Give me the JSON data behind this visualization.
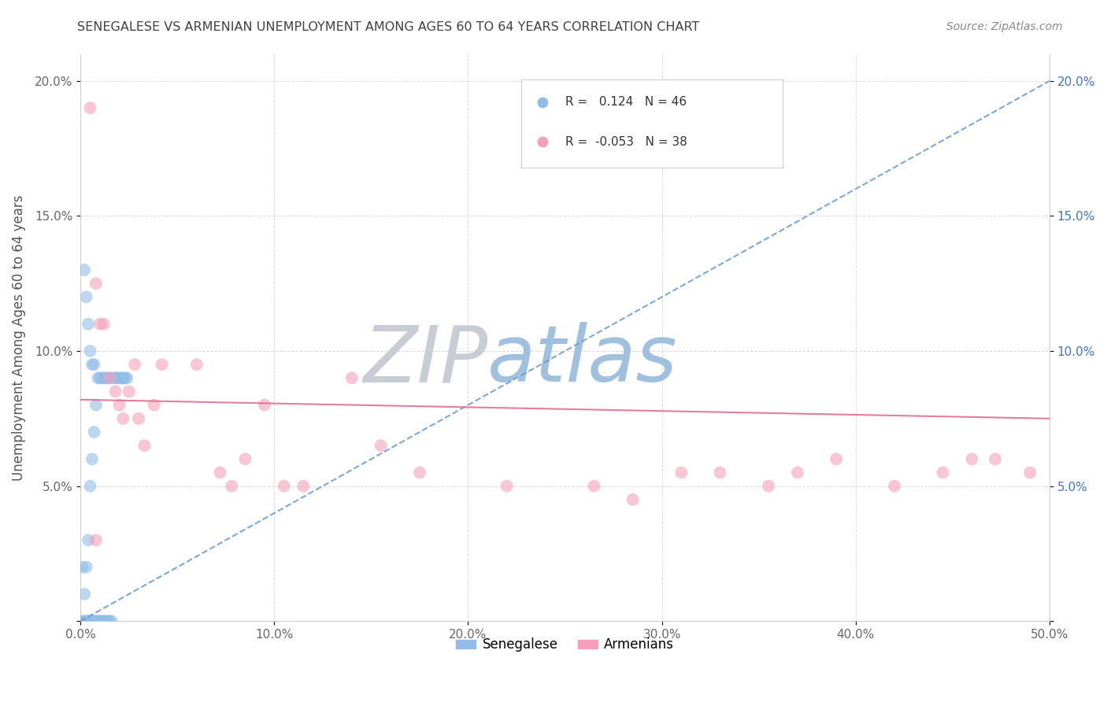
{
  "title": "SENEGALESE VS ARMENIAN UNEMPLOYMENT AMONG AGES 60 TO 64 YEARS CORRELATION CHART",
  "source": "Source: ZipAtlas.com",
  "ylabel": "Unemployment Among Ages 60 to 64 years",
  "xlim": [
    0,
    0.5
  ],
  "ylim": [
    0,
    0.21
  ],
  "xticks": [
    0.0,
    0.1,
    0.2,
    0.3,
    0.4,
    0.5
  ],
  "xtick_labels": [
    "0.0%",
    "10.0%",
    "20.0%",
    "30.0%",
    "40.0%",
    "50.0%"
  ],
  "yticks": [
    0.0,
    0.05,
    0.1,
    0.15,
    0.2
  ],
  "ytick_labels": [
    "",
    "5.0%",
    "10.0%",
    "15.0%",
    "20.0%"
  ],
  "senegalese_R": 0.124,
  "senegalese_N": 46,
  "armenian_R": -0.053,
  "armenian_N": 38,
  "senegalese_color": "#92bde8",
  "armenian_color": "#f4a0b8",
  "senegalese_line_color": "#6699cc",
  "armenian_line_color": "#e07090",
  "watermark_zip_color": "#c0c8d8",
  "watermark_atlas_color": "#a8c8e8",
  "background_color": "#ffffff",
  "grid_color": "#cccccc",
  "title_color": "#404040",
  "senegalese_x": [
    0.001,
    0.002,
    0.002,
    0.003,
    0.003,
    0.004,
    0.004,
    0.005,
    0.005,
    0.006,
    0.006,
    0.007,
    0.007,
    0.008,
    0.008,
    0.009,
    0.009,
    0.01,
    0.01,
    0.011,
    0.011,
    0.012,
    0.012,
    0.013,
    0.013,
    0.014,
    0.014,
    0.015,
    0.015,
    0.016,
    0.017,
    0.018,
    0.019,
    0.02,
    0.021,
    0.022,
    0.023,
    0.024,
    0.002,
    0.003,
    0.004,
    0.005,
    0.006,
    0.007,
    0.022,
    0.001
  ],
  "senegalese_y": [
    0.0,
    0.0,
    0.01,
    0.0,
    0.02,
    0.0,
    0.03,
    0.0,
    0.05,
    0.0,
    0.06,
    0.0,
    0.07,
    0.0,
    0.08,
    0.0,
    0.09,
    0.0,
    0.09,
    0.0,
    0.09,
    0.0,
    0.09,
    0.0,
    0.09,
    0.0,
    0.09,
    0.0,
    0.09,
    0.0,
    0.09,
    0.09,
    0.09,
    0.09,
    0.09,
    0.09,
    0.09,
    0.09,
    0.13,
    0.12,
    0.11,
    0.1,
    0.095,
    0.095,
    0.09,
    0.02
  ],
  "armenian_x": [
    0.005,
    0.008,
    0.01,
    0.012,
    0.015,
    0.018,
    0.02,
    0.022,
    0.025,
    0.028,
    0.03,
    0.033,
    0.038,
    0.042,
    0.06,
    0.072,
    0.078,
    0.085,
    0.095,
    0.105,
    0.115,
    0.14,
    0.155,
    0.175,
    0.22,
    0.265,
    0.285,
    0.31,
    0.33,
    0.355,
    0.37,
    0.39,
    0.42,
    0.445,
    0.46,
    0.472,
    0.49,
    0.008
  ],
  "armenian_y": [
    0.19,
    0.125,
    0.11,
    0.11,
    0.09,
    0.085,
    0.08,
    0.075,
    0.085,
    0.095,
    0.075,
    0.065,
    0.08,
    0.095,
    0.095,
    0.055,
    0.05,
    0.06,
    0.08,
    0.05,
    0.05,
    0.09,
    0.065,
    0.055,
    0.05,
    0.05,
    0.045,
    0.055,
    0.055,
    0.05,
    0.055,
    0.06,
    0.05,
    0.055,
    0.06,
    0.06,
    0.055,
    0.03
  ],
  "sen_trend_x": [
    0.0,
    0.5
  ],
  "sen_trend_y": [
    0.0,
    0.2
  ],
  "arm_trend_x": [
    0.0,
    0.5
  ],
  "arm_trend_y": [
    0.082,
    0.075
  ]
}
